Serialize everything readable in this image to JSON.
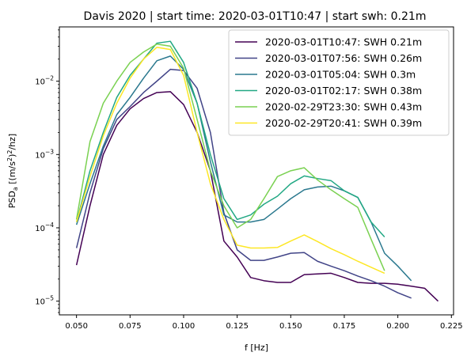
{
  "chart_data": {
    "type": "line",
    "title": "Davis 2020 | start time: 2020-03-01T10:47 | start swh: 0.21m",
    "xlabel": "f [Hz]",
    "ylabel_main": "PSD",
    "ylabel_sub": "a",
    "ylabel_unit_open": " [(m/s",
    "ylabel_unit_sup": "2",
    "ylabel_unit_close": ")",
    "ylabel_unit_sup2": "2",
    "ylabel_unit_end": "/hz]",
    "xlim": [
      0.042,
      0.226
    ],
    "ylim": [
      6.5e-06,
      0.055
    ],
    "yscale": "log",
    "xticks": [
      0.05,
      0.075,
      0.1,
      0.125,
      0.15,
      0.175,
      0.2,
      0.225
    ],
    "xtick_labels": [
      "0.050",
      "0.075",
      "0.100",
      "0.125",
      "0.150",
      "0.175",
      "0.200",
      "0.225"
    ],
    "yticks": [
      1e-05,
      0.0001,
      0.001,
      0.01
    ],
    "ytick_labels": [
      {
        "base": "10",
        "exp": "−5"
      },
      {
        "base": "10",
        "exp": "−4"
      },
      {
        "base": "10",
        "exp": "−3"
      },
      {
        "base": "10",
        "exp": "−2"
      }
    ],
    "grid": false,
    "legend_position": "top-right",
    "series": [
      {
        "name": "2020-03-01T10:47: SWH 0.21m",
        "color": "#440154",
        "x": [
          0.05,
          0.0563,
          0.0625,
          0.0688,
          0.075,
          0.0813,
          0.0875,
          0.0938,
          0.1,
          0.1063,
          0.1125,
          0.1188,
          0.125,
          0.1313,
          0.1375,
          0.1438,
          0.15,
          0.1563,
          0.1625,
          0.1688,
          0.175,
          0.1813,
          0.1875,
          0.1938,
          0.2,
          0.2063,
          0.2125,
          0.2188
        ],
        "y": [
          3.1e-05,
          0.0002,
          0.001,
          0.0025,
          0.0042,
          0.0058,
          0.007,
          0.0072,
          0.0048,
          0.002,
          0.0006,
          6.6e-05,
          4e-05,
          2.1e-05,
          1.9e-05,
          1.8e-05,
          1.8e-05,
          2.3e-05,
          2.35e-05,
          2.4e-05,
          2.1e-05,
          1.8e-05,
          1.75e-05,
          1.75e-05,
          1.7e-05,
          1.6e-05,
          1.5e-05,
          1e-05
        ]
      },
      {
        "name": "2020-03-01T07:56: SWH 0.26m",
        "color": "#414487",
        "x": [
          0.05,
          0.0563,
          0.0625,
          0.0688,
          0.075,
          0.0813,
          0.0875,
          0.0938,
          0.1,
          0.1063,
          0.1125,
          0.1188,
          0.125,
          0.1313,
          0.1375,
          0.1438,
          0.15,
          0.1563,
          0.1625,
          0.1688,
          0.175,
          0.1813,
          0.1875,
          0.1938,
          0.2,
          0.2063
        ],
        "y": [
          5.3e-05,
          0.0003,
          0.0012,
          0.003,
          0.0045,
          0.007,
          0.01,
          0.0145,
          0.014,
          0.008,
          0.002,
          0.00016,
          5e-05,
          3.6e-05,
          3.6e-05,
          4e-05,
          4.5e-05,
          4.6e-05,
          3.5e-05,
          3e-05,
          2.6e-05,
          2.2e-05,
          1.9e-05,
          1.6e-05,
          1.3e-05,
          1.1e-05
        ]
      },
      {
        "name": "2020-03-01T05:04: SWH 0.3m",
        "color": "#2a788e",
        "x": [
          0.05,
          0.0563,
          0.0625,
          0.0688,
          0.075,
          0.0813,
          0.0875,
          0.0938,
          0.1,
          0.1063,
          0.1125,
          0.1188,
          0.125,
          0.1313,
          0.1375,
          0.1438,
          0.15,
          0.1563,
          0.1625,
          0.1688,
          0.175,
          0.1813,
          0.1875,
          0.1938,
          0.2,
          0.2063
        ],
        "y": [
          0.00011,
          0.0004,
          0.0013,
          0.0035,
          0.006,
          0.011,
          0.019,
          0.022,
          0.0145,
          0.005,
          0.0008,
          0.00015,
          0.00012,
          0.00012,
          0.00013,
          0.00018,
          0.00025,
          0.00033,
          0.00036,
          0.00037,
          0.00032,
          0.00026,
          0.00012,
          4.5e-05,
          3e-05,
          1.9e-05
        ]
      },
      {
        "name": "2020-03-01T02:17: SWH 0.38m",
        "color": "#22a884",
        "x": [
          0.05,
          0.0563,
          0.0625,
          0.0688,
          0.075,
          0.0813,
          0.0875,
          0.0938,
          0.1,
          0.1063,
          0.1125,
          0.1188,
          0.125,
          0.1313,
          0.1375,
          0.1438,
          0.15,
          0.1563,
          0.1625,
          0.1688,
          0.175,
          0.1813,
          0.1875,
          0.1938
        ],
        "y": [
          0.00012,
          0.0006,
          0.002,
          0.006,
          0.012,
          0.02,
          0.033,
          0.035,
          0.018,
          0.005,
          0.001,
          0.00025,
          0.00013,
          0.00015,
          0.00021,
          0.00027,
          0.0004,
          0.00051,
          0.00047,
          0.00044,
          0.00032,
          0.00026,
          0.00012,
          7.5e-05
        ]
      },
      {
        "name": "2020-02-29T23:30: SWH 0.43m",
        "color": "#7ad151",
        "x": [
          0.05,
          0.0563,
          0.0625,
          0.0688,
          0.075,
          0.0813,
          0.0875,
          0.0938,
          0.1,
          0.1063,
          0.1125,
          0.1188,
          0.125,
          0.1313,
          0.1375,
          0.1438,
          0.15,
          0.1563,
          0.1625,
          0.1688,
          0.175,
          0.1813,
          0.1875,
          0.1938
        ],
        "y": [
          0.00013,
          0.0015,
          0.005,
          0.01,
          0.018,
          0.025,
          0.032,
          0.03,
          0.015,
          0.003,
          0.0006,
          0.0002,
          0.0001,
          0.00013,
          0.00025,
          0.0005,
          0.0006,
          0.00066,
          0.00045,
          0.00033,
          0.00025,
          0.00019,
          7e-05,
          2.6e-05
        ]
      },
      {
        "name": "2020-02-29T20:41: SWH 0.39m",
        "color": "#fde725",
        "x": [
          0.05,
          0.0563,
          0.0625,
          0.0688,
          0.075,
          0.0813,
          0.0875,
          0.0938,
          0.1,
          0.1063,
          0.1125,
          0.1188,
          0.125,
          0.1313,
          0.1375,
          0.1438,
          0.15,
          0.1563,
          0.1625,
          0.1688,
          0.175,
          0.1813,
          0.1875,
          0.1938
        ],
        "y": [
          0.00012,
          0.0005,
          0.0018,
          0.005,
          0.011,
          0.02,
          0.029,
          0.027,
          0.012,
          0.002,
          0.0004,
          0.00013,
          5.8e-05,
          5.3e-05,
          5.3e-05,
          5.4e-05,
          6.6e-05,
          8e-05,
          6.5e-05,
          5.2e-05,
          4.3e-05,
          3.5e-05,
          2.9e-05,
          2.4e-05
        ]
      }
    ]
  }
}
